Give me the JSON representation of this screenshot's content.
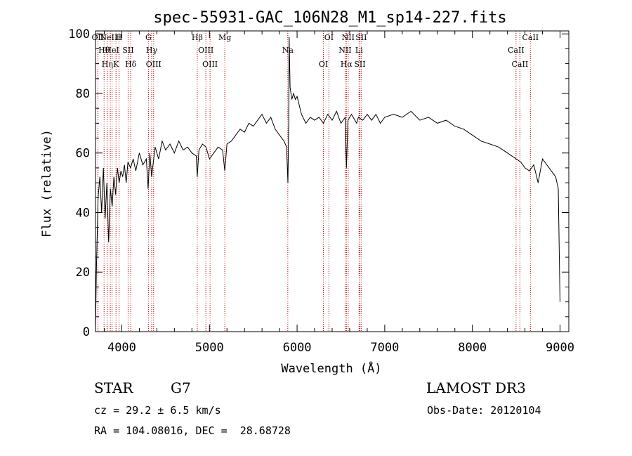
{
  "colors": {
    "axis": "#000000",
    "line": "#000000",
    "marker": "#cc0000",
    "background": "#ffffff"
  },
  "chart_data": {
    "type": "line",
    "title": "spec-55931-GAC_106N28_M1_sp14-227.fits",
    "xlabel": "Wavelength (Å)",
    "ylabel": "Flux (relative)",
    "xlim": [
      3700,
      9100
    ],
    "ylim": [
      0,
      101
    ],
    "xticks": [
      4000,
      5000,
      6000,
      7000,
      8000,
      9000
    ],
    "yticks": [
      0,
      20,
      40,
      60,
      80,
      100
    ],
    "grid": false,
    "series": [
      {
        "x": [
          3700,
          3710,
          3730,
          3750,
          3770,
          3790,
          3810,
          3830,
          3850,
          3870,
          3890,
          3910,
          3930,
          3950,
          3970,
          3990,
          4010,
          4030,
          4050,
          4070,
          4100,
          4130,
          4160,
          4200,
          4240,
          4280,
          4300,
          4320,
          4340,
          4380,
          4420,
          4460,
          4500,
          4550,
          4600,
          4650,
          4700,
          4750,
          4800,
          4850,
          4861,
          4880,
          4920,
          4960,
          5000,
          5050,
          5100,
          5150,
          5175,
          5200,
          5250,
          5300,
          5350,
          5400,
          5450,
          5500,
          5550,
          5600,
          5650,
          5700,
          5750,
          5800,
          5850,
          5880,
          5895,
          5905,
          5910,
          5920,
          5940,
          5960,
          5980,
          6000,
          6050,
          6100,
          6150,
          6200,
          6250,
          6300,
          6350,
          6400,
          6450,
          6500,
          6550,
          6563,
          6580,
          6620,
          6680,
          6700,
          6750,
          6800,
          6850,
          6900,
          6950,
          7000,
          7100,
          7200,
          7300,
          7400,
          7500,
          7600,
          7700,
          7800,
          7900,
          8000,
          8100,
          8200,
          8300,
          8400,
          8500,
          8550,
          8600,
          8650,
          8700,
          8750,
          8800,
          8850,
          8900,
          8950,
          8980,
          9000
        ],
        "y": [
          0,
          20,
          45,
          52,
          40,
          55,
          38,
          50,
          30,
          48,
          42,
          52,
          46,
          55,
          50,
          54,
          52,
          56,
          50,
          57,
          55,
          58,
          54,
          60,
          56,
          58,
          48,
          60,
          52,
          62,
          58,
          64,
          61,
          63,
          60,
          64,
          61,
          62,
          60,
          59,
          52,
          61,
          63,
          62,
          58,
          60,
          62,
          61,
          54,
          63,
          64,
          66,
          68,
          67,
          70,
          69,
          71,
          73,
          70,
          72,
          68,
          66,
          64,
          62,
          50,
          70,
          99,
          82,
          78,
          80,
          78,
          79,
          73,
          70,
          72,
          71,
          72,
          70,
          73,
          71,
          74,
          70,
          72,
          55,
          71,
          73,
          70,
          72,
          71,
          73,
          71,
          73,
          70,
          72,
          73,
          72,
          74,
          71,
          72,
          70,
          71,
          69,
          68,
          66,
          64,
          63,
          62,
          60,
          58,
          57,
          55,
          54,
          56,
          50,
          58,
          56,
          54,
          52,
          48,
          10
        ]
      }
    ],
    "lines": [
      {
        "x": 3727,
        "labels": [
          "OII"
        ]
      },
      {
        "x": 3798,
        "labels": [
          "Hθ"
        ]
      },
      {
        "x": 3835,
        "labels": [
          "Hη"
        ]
      },
      {
        "x": 3869,
        "labels": [
          "NeIII"
        ]
      },
      {
        "x": 3889,
        "labels": [
          "HeI"
        ]
      },
      {
        "x": 3934,
        "labels": [
          "K"
        ]
      },
      {
        "x": 3969,
        "labels": [
          "H"
        ]
      },
      {
        "x": 4072,
        "labels": [
          "SII"
        ]
      },
      {
        "x": 4102,
        "labels": [
          "Hδ"
        ]
      },
      {
        "x": 4304,
        "labels": [
          "G"
        ]
      },
      {
        "x": 4341,
        "labels": [
          "Hγ"
        ]
      },
      {
        "x": 4363,
        "labels": [
          "OIII"
        ]
      },
      {
        "x": 4861,
        "labels": [
          "Hβ"
        ]
      },
      {
        "x": 4959,
        "labels": [
          "OIII"
        ]
      },
      {
        "x": 5007,
        "labels": [
          "OIII"
        ]
      },
      {
        "x": 5175,
        "labels": [
          "Mg"
        ]
      },
      {
        "x": 5894,
        "labels": [
          "Na"
        ]
      },
      {
        "x": 6300,
        "labels": [
          "OI"
        ]
      },
      {
        "x": 6363,
        "labels": [
          "OI"
        ]
      },
      {
        "x": 6548,
        "labels": [
          "NII"
        ]
      },
      {
        "x": 6563,
        "labels": [
          "Hα"
        ]
      },
      {
        "x": 6583,
        "labels": [
          "NII"
        ]
      },
      {
        "x": 6707,
        "labels": [
          "Li"
        ]
      },
      {
        "x": 6716,
        "labels": [
          "SII"
        ]
      },
      {
        "x": 6731,
        "labels": [
          "SII"
        ]
      },
      {
        "x": 8498,
        "labels": [
          "CaII"
        ]
      },
      {
        "x": 8542,
        "labels": [
          "CaII"
        ]
      },
      {
        "x": 8662,
        "labels": [
          "CaII"
        ]
      }
    ]
  },
  "info": {
    "class": "STAR",
    "subclass": "G7",
    "redshift": "cz = 29.2 ± 6.5 km/s",
    "coords": "RA = 104.08016, DEC =  28.68728",
    "survey": "LAMOST DR3",
    "obs_date": "Obs-Date: 20120104"
  }
}
